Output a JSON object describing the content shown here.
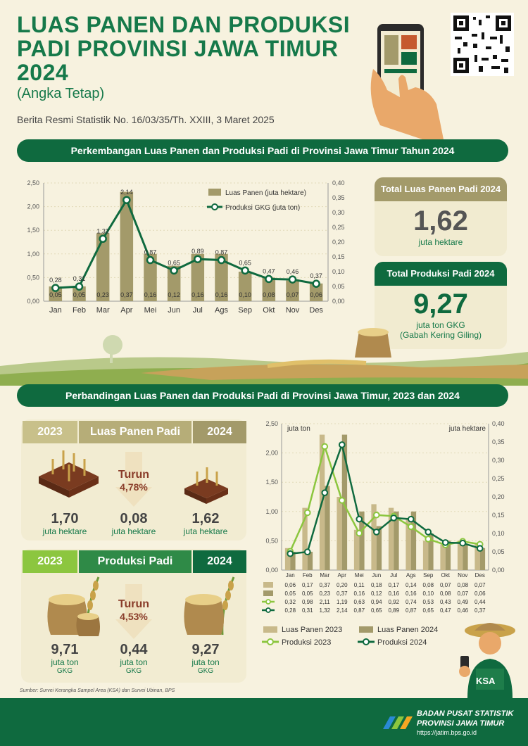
{
  "header": {
    "title_lines": [
      "LUAS PANEN DAN PRODUKSI",
      "PADI PROVINSI JAWA TIMUR",
      "2024"
    ],
    "subtitle": "(Angka Tetap)",
    "release": "Berita Resmi Statistik No. 16/03/35/Th. XXIII, 3 Maret 2025"
  },
  "section1": {
    "title": "Perkembangan Luas Panen dan Produksi Padi di Provinsi Jawa Timur Tahun 2024"
  },
  "section2": {
    "title": "Perbandingan Luas Panen dan Produksi Padi di Provinsi Jawa Timur, 2023 dan 2024"
  },
  "cards": {
    "luas": {
      "title": "Total Luas Panen Padi 2024",
      "value": "1,62",
      "unit": "juta hektare"
    },
    "produksi": {
      "title": "Total Produksi Padi 2024",
      "value": "9,27",
      "unit": "juta ton GKG",
      "unit2": "(Gabah Kering Giling)"
    }
  },
  "comparison": {
    "luas": {
      "year_a": "2023",
      "label": "Luas Panen Padi",
      "year_b": "2024",
      "val_a": "1,70",
      "unit_a": "juta hektare",
      "turun": "Turun",
      "pct": "4,78%",
      "diff": "0,08",
      "unit_diff": "juta hektare",
      "val_b": "1,62",
      "unit_b": "juta hektare"
    },
    "produksi": {
      "year_a": "2023",
      "label": "Produksi Padi",
      "year_b": "2024",
      "val_a": "9,71",
      "unit_a": "juta ton",
      "unit_a2": "GKG",
      "turun": "Turun",
      "pct": "4,53%",
      "diff": "0,44",
      "unit_diff": "juta ton",
      "unit_diff2": "GKG",
      "val_b": "9,27",
      "unit_b": "juta ton",
      "unit_b2": "GKG"
    }
  },
  "source": "Sumber: Survei Kerangka Sampel Area (KSA) dan Survei Ubinan, BPS",
  "footer": {
    "org1": "BADAN PUSAT STATISTIK",
    "org2": "PROVINSI JAWA TIMUR",
    "url": "https://jatim.bps.go.id"
  },
  "farmer_badge": "KSA",
  "colors": {
    "green_dark": "#0f6a3f",
    "green_light": "#8cc63f",
    "bar_2024": "#a39a6a",
    "bar_2023": "#c8b98a",
    "title_green": "#16794a"
  },
  "chart_data": [
    {
      "type": "bar+line",
      "categories": [
        "Jan",
        "Feb",
        "Mar",
        "Apr",
        "Mei",
        "Jun",
        "Jul",
        "Ags",
        "Sep",
        "Okt",
        "Nov",
        "Des"
      ],
      "series": [
        {
          "name": "Luas Panen (juta hektare)",
          "type": "bar",
          "axis": "right",
          "values": [
            0.05,
            0.05,
            0.23,
            0.37,
            0.16,
            0.12,
            0.16,
            0.16,
            0.1,
            0.08,
            0.07,
            0.06
          ],
          "labels": [
            "0,05",
            "0,05",
            "0,23",
            "0,37",
            "0,16",
            "0,12",
            "0,16",
            "0,16",
            "0,10",
            "0,08",
            "0,07",
            "0,06"
          ]
        },
        {
          "name": "Produksi GKG (juta ton)",
          "type": "line",
          "axis": "left",
          "values": [
            0.28,
            0.31,
            1.32,
            2.14,
            0.87,
            0.65,
            0.89,
            0.87,
            0.65,
            0.47,
            0.46,
            0.37
          ],
          "labels": [
            "0,28",
            "0,31",
            "1,32",
            "2,14",
            "0,87",
            "0,65",
            "0,89",
            "0,87",
            "0,65",
            "0,47",
            "0,46",
            "0,37"
          ]
        }
      ],
      "y_left_ticks": [
        "0,00",
        "0,50",
        "1,00",
        "1,50",
        "2,00",
        "2,50"
      ],
      "y_right_ticks": [
        "0,00",
        "0,05",
        "0,10",
        "0,15",
        "0,20",
        "0,25",
        "0,30",
        "0,35",
        "0,40"
      ],
      "ylim_left": [
        0,
        2.5
      ],
      "ylim_right": [
        0,
        0.4
      ],
      "legend_position": "top-right"
    },
    {
      "type": "bar+line",
      "categories": [
        "Jan",
        "Feb",
        "Mar",
        "Apr",
        "Mei",
        "Jun",
        "Jul",
        "Ags",
        "Sep",
        "Okt",
        "Nov",
        "Des"
      ],
      "left_axis_label": "juta ton",
      "right_axis_label": "juta hektare",
      "y_left_ticks": [
        "0,00",
        "0,50",
        "1,00",
        "1,50",
        "2,00",
        "2,50"
      ],
      "y_right_ticks": [
        "0,00",
        "0,05",
        "0,10",
        "0,15",
        "0,20",
        "0,25",
        "0,30",
        "0,35",
        "0,40"
      ],
      "ylim_left": [
        0,
        2.5
      ],
      "ylim_right": [
        0,
        0.4
      ],
      "series": [
        {
          "name": "Luas Panen 2023",
          "type": "bar",
          "axis": "right",
          "values": [
            0.06,
            0.17,
            0.37,
            0.2,
            0.11,
            0.18,
            0.17,
            0.14,
            0.08,
            0.07,
            0.08,
            0.07
          ],
          "labels": [
            "0,06",
            "0,17",
            "0,37",
            "0,20",
            "0,11",
            "0,18",
            "0,17",
            "0,14",
            "0,08",
            "0,07",
            "0,08",
            "0,07"
          ]
        },
        {
          "name": "Luas Panen 2024",
          "type": "bar",
          "axis": "right",
          "values": [
            0.05,
            0.05,
            0.23,
            0.37,
            0.16,
            0.12,
            0.16,
            0.16,
            0.1,
            0.08,
            0.07,
            0.06
          ],
          "labels": [
            "0,05",
            "0,05",
            "0,23",
            "0,37",
            "0,16",
            "0,12",
            "0,16",
            "0,16",
            "0,10",
            "0,08",
            "0,07",
            "0,06"
          ]
        },
        {
          "name": "Produksi 2023",
          "type": "line",
          "axis": "left",
          "values": [
            0.32,
            0.98,
            2.11,
            1.19,
            0.63,
            0.94,
            0.92,
            0.74,
            0.53,
            0.43,
            0.49,
            0.44
          ],
          "labels": [
            "0,32",
            "0,98",
            "2,11",
            "1,19",
            "0,63",
            "0,94",
            "0,92",
            "0,74",
            "0,53",
            "0,43",
            "0,49",
            "0,44"
          ]
        },
        {
          "name": "Produksi 2024",
          "type": "line",
          "axis": "left",
          "values": [
            0.28,
            0.31,
            1.32,
            2.14,
            0.87,
            0.65,
            0.89,
            0.87,
            0.65,
            0.47,
            0.46,
            0.37
          ],
          "labels": [
            "0,28",
            "0,31",
            "1,32",
            "2,14",
            "0,87",
            "0,65",
            "0,89",
            "0,87",
            "0,65",
            "0,47",
            "0,46",
            "0,37"
          ]
        }
      ],
      "legend_position": "bottom"
    }
  ]
}
